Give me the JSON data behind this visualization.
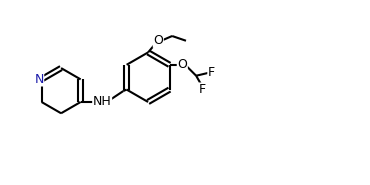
{
  "bg_color": "#ffffff",
  "line_color": "#000000",
  "n_color": "#1a1aaa",
  "bond_lw": 1.5,
  "font_size": 9,
  "figsize": [
    3.7,
    1.85
  ],
  "dpi": 100,
  "xlim": [
    0,
    10
  ],
  "ylim": [
    0,
    5
  ]
}
